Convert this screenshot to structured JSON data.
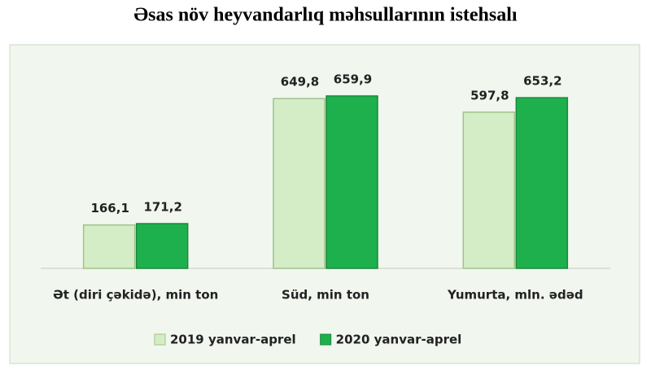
{
  "chart_data": {
    "type": "bar",
    "title": "Əsas növ heyvandarlıq məhsullarının istehsalı",
    "categories": [
      "Ət (diri çəkidə), min ton",
      "Süd, min ton",
      "Yumurta, mln. ədəd"
    ],
    "series": [
      {
        "name": "2019 yanvar-aprel",
        "color": "#d5edc6",
        "values": [
          166.1,
          649.8,
          597.8
        ],
        "value_labels": [
          "166,1",
          "649,8",
          "597,8"
        ]
      },
      {
        "name": "2020 yanvar-aprel",
        "color": "#1fb04e",
        "values": [
          171.2,
          659.9,
          653.2
        ],
        "value_labels": [
          "171,2",
          "659,9",
          "653,2"
        ]
      }
    ],
    "legend": "bottom"
  }
}
